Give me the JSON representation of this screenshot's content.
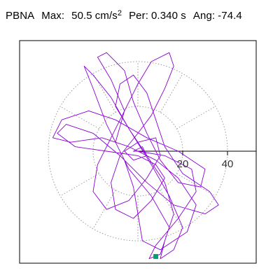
{
  "header": {
    "station": "PBNA",
    "max_label": "Max:",
    "max_value": "50.5",
    "max_unit": "cm/s",
    "max_unit_exp": "2",
    "per_label": "Per:",
    "per_value": "0.340 s",
    "ang_label": "Ang:",
    "ang_value": "-74.4"
  },
  "colors": {
    "trace": "#8b00d8",
    "marker": "#009e73",
    "grid": "#9a9a9a",
    "axis": "#000000",
    "frame": "#000000"
  },
  "chart_data": {
    "type": "scatter",
    "title": "",
    "xlabel": "",
    "ylabel": "",
    "polar_grid": true,
    "grid_radii": [
      20,
      40
    ],
    "spoke_angles_deg": [
      30,
      60,
      90,
      120,
      150,
      210,
      240,
      270,
      300,
      330
    ],
    "tick_labels": [
      "20",
      "40"
    ],
    "xlim": [
      -45,
      50
    ],
    "ylim": [
      -50,
      50
    ],
    "trace_points": [
      [
        0,
        0
      ],
      [
        12,
        -2
      ],
      [
        24,
        -8
      ],
      [
        26,
        -18
      ],
      [
        18,
        -30
      ],
      [
        8,
        -42
      ],
      [
        5,
        -48
      ],
      [
        10,
        -46
      ],
      [
        14,
        -34
      ],
      [
        6,
        -20
      ],
      [
        -4,
        -8
      ],
      [
        -10,
        4
      ],
      [
        -6,
        18
      ],
      [
        -12,
        32
      ],
      [
        -18,
        42
      ],
      [
        -14,
        44
      ],
      [
        -6,
        36
      ],
      [
        -2,
        22
      ],
      [
        4,
        8
      ],
      [
        10,
        -4
      ],
      [
        18,
        -14
      ],
      [
        28,
        -16
      ],
      [
        30,
        -8
      ],
      [
        18,
        0
      ],
      [
        4,
        6
      ],
      [
        -10,
        14
      ],
      [
        -22,
        18
      ],
      [
        -34,
        14
      ],
      [
        -38,
        6
      ],
      [
        -30,
        4
      ],
      [
        -16,
        6
      ],
      [
        -4,
        2
      ],
      [
        8,
        -4
      ],
      [
        18,
        -12
      ],
      [
        26,
        -24
      ],
      [
        22,
        -36
      ],
      [
        10,
        -44
      ],
      [
        2,
        -40
      ],
      [
        0,
        -28
      ],
      [
        -2,
        -16
      ],
      [
        -6,
        -4
      ],
      [
        -14,
        12
      ],
      [
        -20,
        28
      ],
      [
        -24,
        38
      ],
      [
        -20,
        34
      ],
      [
        -12,
        24
      ],
      [
        -4,
        10
      ],
      [
        6,
        -6
      ],
      [
        14,
        -20
      ],
      [
        20,
        -34
      ],
      [
        16,
        -44
      ],
      [
        10,
        -48
      ],
      [
        12,
        -40
      ],
      [
        16,
        -28
      ],
      [
        12,
        -14
      ],
      [
        4,
        -2
      ],
      [
        -4,
        10
      ],
      [
        -10,
        20
      ],
      [
        -8,
        30
      ],
      [
        -2,
        34
      ],
      [
        4,
        26
      ],
      [
        8,
        14
      ],
      [
        12,
        2
      ],
      [
        20,
        -10
      ],
      [
        32,
        -18
      ],
      [
        36,
        -24
      ],
      [
        30,
        -28
      ],
      [
        16,
        -24
      ],
      [
        4,
        -14
      ],
      [
        -8,
        -2
      ],
      [
        -20,
        8
      ],
      [
        -32,
        12
      ],
      [
        -36,
        8
      ],
      [
        -28,
        2
      ],
      [
        -14,
        0
      ],
      [
        0,
        -2
      ],
      [
        8,
        -6
      ],
      [
        12,
        -12
      ],
      [
        6,
        -22
      ],
      [
        -2,
        -30
      ],
      [
        -10,
        -26
      ],
      [
        -12,
        -14
      ],
      [
        -8,
        -2
      ],
      [
        0,
        8
      ],
      [
        6,
        16
      ],
      [
        12,
        28
      ],
      [
        16,
        38
      ],
      [
        14,
        44
      ],
      [
        6,
        40
      ],
      [
        0,
        30
      ],
      [
        -6,
        18
      ],
      [
        -12,
        6
      ],
      [
        -18,
        -6
      ],
      [
        -20,
        -18
      ],
      [
        -14,
        -26
      ],
      [
        -4,
        -22
      ],
      [
        4,
        -12
      ],
      [
        10,
        -2
      ],
      [
        8,
        6
      ],
      [
        0,
        4
      ],
      [
        -6,
        0
      ],
      [
        -2,
        -4
      ],
      [
        4,
        -2
      ],
      [
        2,
        2
      ],
      [
        -2,
        0
      ],
      [
        0,
        0
      ]
    ],
    "end_point": [
      8,
      -47
    ]
  }
}
